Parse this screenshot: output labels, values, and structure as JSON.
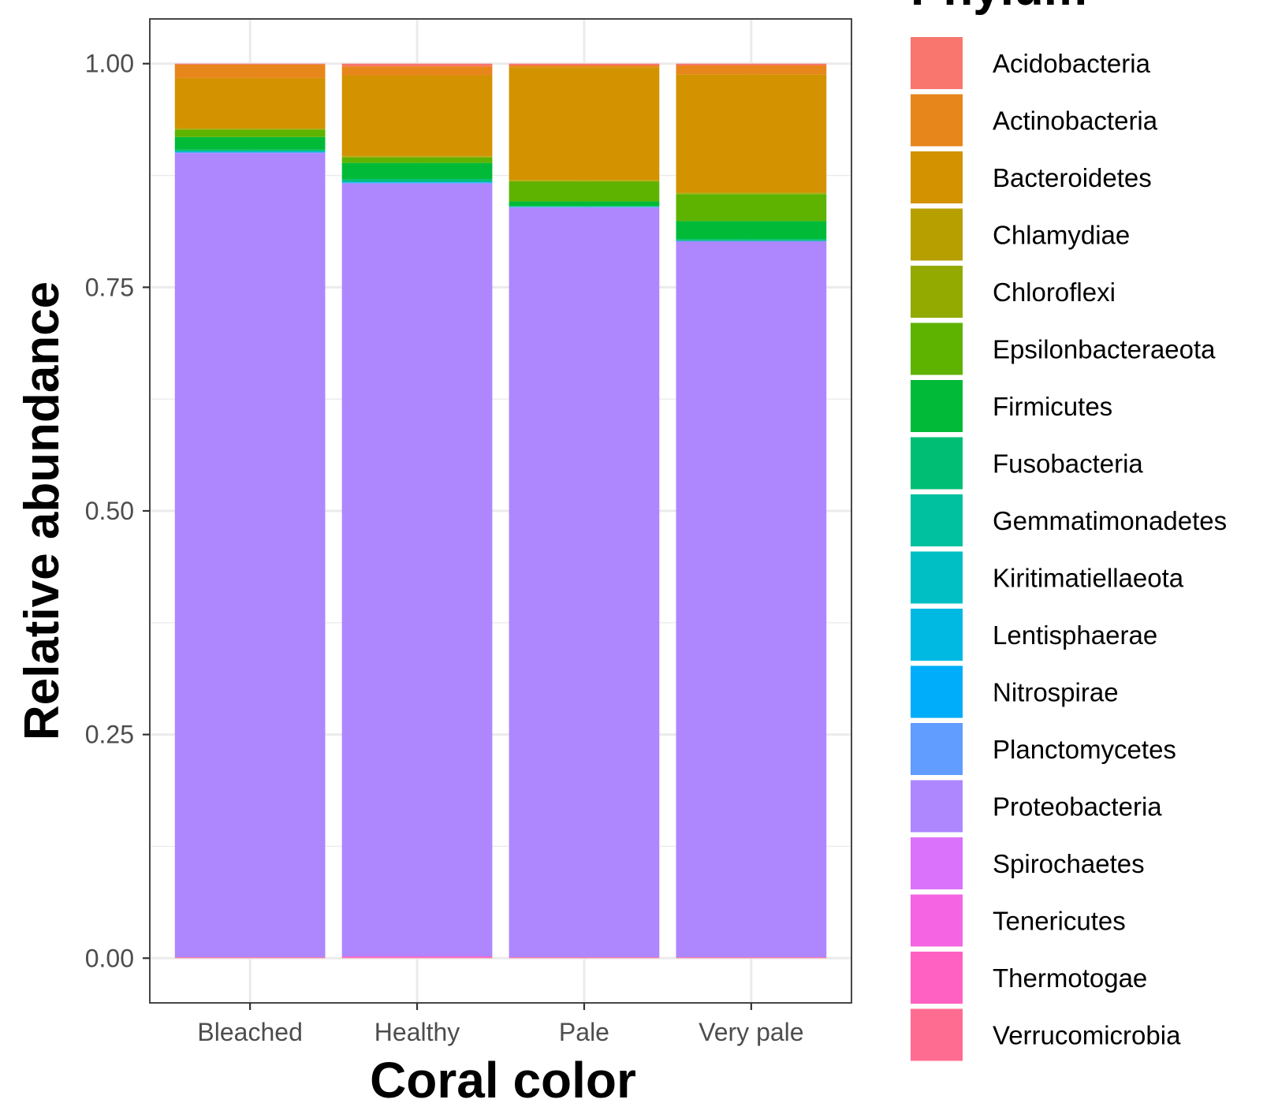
{
  "chart_data": {
    "type": "bar",
    "stacked": true,
    "xlabel": "Coral color",
    "ylabel": "Relative abundance",
    "categories": [
      "Bleached",
      "Healthy",
      "Pale",
      "Very pale"
    ],
    "ylim": [
      -0.05,
      1.05
    ],
    "yticks": [
      0.0,
      0.25,
      0.5,
      0.75,
      1.0
    ],
    "ytick_labels": [
      "0.00",
      "0.25",
      "0.50",
      "0.75",
      "1.00"
    ],
    "grid": true,
    "legend": {
      "title": "Phylum",
      "placement": "right"
    },
    "series": [
      {
        "name": "Acidobacteria",
        "color": "#F8766D",
        "values": [
          0.001,
          0.003,
          0.002,
          0.002
        ]
      },
      {
        "name": "Actinobacteria",
        "color": "#E7861B",
        "values": [
          0.015,
          0.01,
          0.002,
          0.01
        ]
      },
      {
        "name": "Bacteroidetes",
        "color": "#D39200",
        "values": [
          0.056,
          0.09,
          0.126,
          0.132
        ]
      },
      {
        "name": "Chlamydiae",
        "color": "#B79F00",
        "values": [
          0.001,
          0.001,
          0.001,
          0.001
        ]
      },
      {
        "name": "Chloroflexi",
        "color": "#93AA00",
        "values": [
          0.001,
          0.001,
          0.001,
          0.001
        ]
      },
      {
        "name": "Epsilonbacteraeota",
        "color": "#5EB300",
        "values": [
          0.008,
          0.006,
          0.022,
          0.03
        ]
      },
      {
        "name": "Firmicutes",
        "color": "#00BA38",
        "values": [
          0.014,
          0.018,
          0.005,
          0.02
        ]
      },
      {
        "name": "Fusobacteria",
        "color": "#00BF74",
        "values": [
          0.002,
          0.003,
          0.001,
          0.002
        ]
      },
      {
        "name": "Gemmatimonadetes",
        "color": "#00C19F",
        "values": [
          0.0,
          0.0,
          0.0,
          0.0
        ]
      },
      {
        "name": "Kiritimatiellaeota",
        "color": "#00BFC4",
        "values": [
          0.0,
          0.0,
          0.0,
          0.0
        ]
      },
      {
        "name": "Lentisphaerae",
        "color": "#00B9E3",
        "values": [
          0.001,
          0.001,
          0.0,
          0.0
        ]
      },
      {
        "name": "Nitrospirae",
        "color": "#00ADFA",
        "values": [
          0.0,
          0.0,
          0.0,
          0.0
        ]
      },
      {
        "name": "Planctomycetes",
        "color": "#619CFF",
        "values": [
          0.001,
          0.001,
          0.001,
          0.001
        ]
      },
      {
        "name": "Proteobacteria",
        "color": "#AE87FF",
        "values": [
          0.899,
          0.864,
          0.838,
          0.8
        ]
      },
      {
        "name": "Spirochaetes",
        "color": "#DB72FB",
        "values": [
          0.0,
          0.0,
          0.0,
          0.0
        ]
      },
      {
        "name": "Tenericutes",
        "color": "#F564E3",
        "values": [
          0.0,
          0.001,
          0.0,
          0.0
        ]
      },
      {
        "name": "Thermotogae",
        "color": "#FF61C3",
        "values": [
          0.0,
          0.0,
          0.0,
          0.0
        ]
      },
      {
        "name": "Verrucomicrobia",
        "color": "#FF6C91",
        "values": [
          0.001,
          0.001,
          0.001,
          0.001
        ]
      }
    ]
  }
}
